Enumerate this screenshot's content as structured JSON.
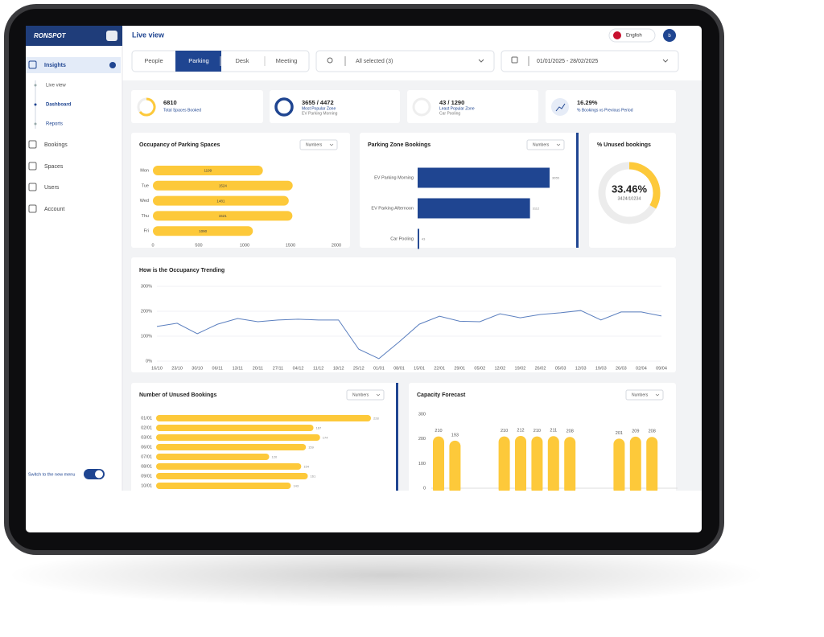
{
  "sidebar": {
    "logo": "RONSPOT",
    "menu": [
      "Insights",
      "Bookings",
      "Spaces",
      "Users",
      "Account"
    ],
    "submenu": [
      "Live view",
      "Dashboard",
      "Reports"
    ],
    "switch_label": "Switch to the new menu"
  },
  "header": {
    "title": "Live view",
    "language": "English",
    "avatar": "b"
  },
  "tabs": [
    "People",
    "Parking",
    "Desk",
    "Meeting"
  ],
  "filters": {
    "location": "All selected (3)",
    "dates": "01/01/2025 - 28/02/2025"
  },
  "kpis": [
    {
      "value": "6810",
      "label": "Total Spaces Booked"
    },
    {
      "value": "3655 / 4472",
      "label": "Most Popular Zone",
      "sublabel": "EV Parking Morning"
    },
    {
      "value": "43 / 1290",
      "label": "Least Popular Zone",
      "sublabel": "Car Pooling"
    },
    {
      "value": "16.29%",
      "label": "% Bookings vs Previous Period"
    }
  ],
  "chart_data": [
    {
      "type": "hbar",
      "title": "Occupancy of Parking Spaces",
      "dropdown": "Numbers",
      "categories": [
        "Mon",
        "Tue",
        "Wed",
        "Thu",
        "Fri"
      ],
      "values": [
        1199,
        1524,
        1481,
        1521,
        1090
      ],
      "color": "#fdc93a",
      "xlim": [
        0,
        2000
      ],
      "xticks": [
        0,
        500,
        1000,
        1500,
        2000
      ]
    },
    {
      "type": "hbar",
      "title": "Parking Zone Bookings",
      "dropdown": "Numbers",
      "categories": [
        "EV Parking Morning",
        "EV Parking Afternoon",
        "Car Pooling"
      ],
      "values": [
        3655,
        3112,
        43
      ],
      "color": "#1f4591"
    },
    {
      "type": "donut",
      "title": "% Unused bookings",
      "values": [
        33.46
      ],
      "value_labels": [
        "33.46%"
      ],
      "subtitle": "3424/10234",
      "color": "#fdc93a"
    },
    {
      "type": "line",
      "title": "How is the Occupancy Trending",
      "categories": [
        "16/10",
        "23/10",
        "30/10",
        "06/11",
        "13/11",
        "20/11",
        "27/11",
        "04/12",
        "11/12",
        "18/12",
        "25/12",
        "01/01",
        "08/01",
        "15/01",
        "22/01",
        "29/01",
        "05/02",
        "12/02",
        "19/02",
        "26/02",
        "05/03",
        "12/03",
        "19/03",
        "26/03",
        "02/04",
        "09/04"
      ],
      "values": [
        139,
        152,
        110,
        148,
        171,
        158,
        165,
        168,
        165,
        165,
        48,
        10,
        77,
        148,
        180,
        160,
        158,
        190,
        174,
        187,
        194,
        203,
        165,
        197,
        197,
        181
      ],
      "color": "#5b7fbf",
      "grid": true,
      "ylim": [
        0,
        300
      ],
      "yticks": [
        {
          "value": 0,
          "label": "0%"
        },
        {
          "value": 100,
          "label": "100%"
        },
        {
          "value": 200,
          "label": "200%"
        },
        {
          "value": 300,
          "label": "300%"
        }
      ]
    },
    {
      "type": "hbar",
      "title": "Number of Unused Bookings",
      "dropdown": "Numbers",
      "categories": [
        "01/01",
        "02/01",
        "03/01",
        "06/01",
        "07/01",
        "08/01",
        "09/01",
        "10/01"
      ],
      "values": [
        228,
        167,
        174,
        159,
        120,
        154,
        161,
        143
      ],
      "color": "#fdc93a"
    },
    {
      "type": "bar",
      "title": "Capacity Forecast",
      "dropdown": "Numbers",
      "categories": [
        null,
        null,
        null,
        null,
        null,
        null,
        null,
        null,
        null,
        null,
        null,
        null,
        null,
        null,
        null
      ],
      "values": [
        210,
        193,
        null,
        null,
        210,
        212,
        210,
        211,
        208,
        null,
        null,
        201,
        209,
        208,
        null
      ],
      "color": "#fdc93a",
      "ylim": [
        0,
        300
      ],
      "yticks": [
        0,
        100,
        200,
        300
      ]
    }
  ]
}
